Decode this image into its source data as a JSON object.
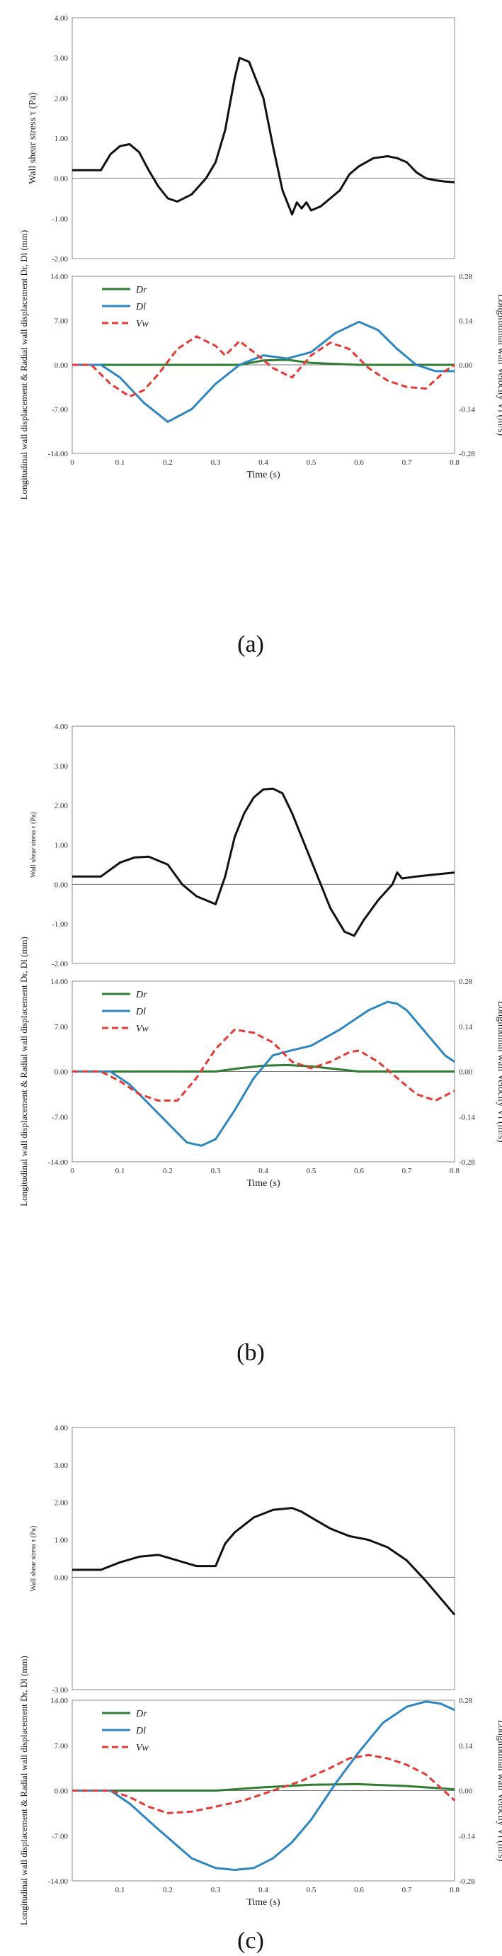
{
  "colors": {
    "Dr": "#2e7d32",
    "Dl": "#2e86c1",
    "Vw": "#e53935",
    "tau": "#111111"
  },
  "chart_data": [
    {
      "panel": "(a)",
      "shear": {
        "type": "line",
        "ylabel": "Wall shear stress τ (Pa)",
        "ylim": [
          -2.0,
          4.0
        ],
        "yticks": [
          "-2.00",
          "-1.00",
          "0.00",
          "1.00",
          "2.00",
          "3.00",
          "4.00"
        ],
        "x": [
          0,
          0.04,
          0.06,
          0.08,
          0.1,
          0.12,
          0.14,
          0.16,
          0.18,
          0.2,
          0.22,
          0.25,
          0.28,
          0.3,
          0.32,
          0.34,
          0.35,
          0.37,
          0.38,
          0.4,
          0.42,
          0.44,
          0.46,
          0.47,
          0.48,
          0.49,
          0.5,
          0.52,
          0.54,
          0.56,
          0.58,
          0.6,
          0.63,
          0.66,
          0.68,
          0.7,
          0.72,
          0.74,
          0.76,
          0.78,
          0.8
        ],
        "values": [
          0.2,
          0.2,
          0.2,
          0.6,
          0.8,
          0.85,
          0.65,
          0.2,
          -0.2,
          -0.5,
          -0.58,
          -0.4,
          0.0,
          0.4,
          1.2,
          2.5,
          3.0,
          2.9,
          2.6,
          2.0,
          0.8,
          -0.3,
          -0.9,
          -0.6,
          -0.75,
          -0.6,
          -0.8,
          -0.7,
          -0.5,
          -0.3,
          0.1,
          0.3,
          0.5,
          0.55,
          0.5,
          0.4,
          0.15,
          0.0,
          -0.05,
          -0.08,
          -0.1
        ]
      },
      "displacement": {
        "type": "line",
        "xlabel": "Time (s)",
        "ylabel_left": "Longitudinal wall displacement & Radial wall displacement Dr, Dl (mm)",
        "ylabel_right": "Longitudinal wall Velocity Vl (m/s)",
        "ylim_left": [
          -14.0,
          14.0
        ],
        "ylim_right": [
          -0.28,
          0.28
        ],
        "yticks_left": [
          "-14.00",
          "-7.00",
          "0.00",
          "7.00",
          "14.00"
        ],
        "yticks_right": [
          "-0.28",
          "-0.14",
          "0.00",
          "0.14",
          "0.28"
        ],
        "xticks": [
          "0",
          "0.1",
          "0.2",
          "0.3",
          "0.4",
          "0.5",
          "0.6",
          "0.7",
          "0.8"
        ],
        "series": [
          {
            "name": "Dr",
            "axis": "left",
            "x": [
              0,
              0.2,
              0.35,
              0.4,
              0.45,
              0.5,
              0.6,
              0.8
            ],
            "values": [
              0,
              0,
              0,
              0.7,
              0.8,
              0.3,
              0,
              0
            ]
          },
          {
            "name": "Dl",
            "axis": "left",
            "x": [
              0,
              0.06,
              0.1,
              0.15,
              0.2,
              0.25,
              0.3,
              0.35,
              0.4,
              0.45,
              0.5,
              0.55,
              0.6,
              0.64,
              0.68,
              0.72,
              0.76,
              0.8
            ],
            "values": [
              0,
              0,
              -2,
              -6,
              -9,
              -7,
              -3,
              0,
              1.5,
              1,
              2,
              5,
              6.8,
              5.5,
              2.5,
              0,
              -1,
              -1
            ]
          },
          {
            "name": "Vw",
            "axis": "right",
            "x": [
              0,
              0.04,
              0.08,
              0.12,
              0.15,
              0.18,
              0.22,
              0.26,
              0.3,
              0.32,
              0.35,
              0.38,
              0.42,
              0.46,
              0.5,
              0.54,
              0.58,
              0.62,
              0.66,
              0.7,
              0.74,
              0.78,
              0.8
            ],
            "values": [
              0,
              0,
              -0.06,
              -0.1,
              -0.08,
              -0.03,
              0.05,
              0.09,
              0.06,
              0.03,
              0.075,
              0.04,
              -0.01,
              -0.04,
              0.03,
              0.07,
              0.05,
              -0.01,
              -0.05,
              -0.07,
              -0.075,
              -0.02,
              0
            ]
          }
        ]
      }
    },
    {
      "panel": "(b)",
      "shear": {
        "type": "line",
        "ylabel": "Wall shear stress τ (Pa)",
        "ylim": [
          -2.0,
          4.0
        ],
        "yticks": [
          "-2.00",
          "-1.00",
          "0.00",
          "1.00",
          "2.00",
          "3.00",
          "4.00"
        ],
        "x": [
          0,
          0.04,
          0.06,
          0.1,
          0.13,
          0.16,
          0.2,
          0.23,
          0.26,
          0.3,
          0.32,
          0.34,
          0.36,
          0.38,
          0.4,
          0.42,
          0.44,
          0.46,
          0.5,
          0.54,
          0.57,
          0.59,
          0.61,
          0.64,
          0.67,
          0.68,
          0.69,
          0.72,
          0.76,
          0.8
        ],
        "values": [
          0.2,
          0.2,
          0.2,
          0.55,
          0.68,
          0.7,
          0.5,
          0.0,
          -0.3,
          -0.5,
          0.2,
          1.2,
          1.8,
          2.2,
          2.4,
          2.42,
          2.3,
          1.8,
          0.6,
          -0.6,
          -1.2,
          -1.3,
          -0.9,
          -0.4,
          0.0,
          0.3,
          0.15,
          0.2,
          0.25,
          0.3
        ]
      },
      "displacement": {
        "type": "line",
        "xlabel": "Time (s)",
        "ylabel_left": "Longitudinal wall displacement & Radial wall displacement Dr, Dl (mm)",
        "ylabel_right": "Longitudinal wall Velocity Vl (m/s)",
        "ylim_left": [
          -14.0,
          14.0
        ],
        "ylim_right": [
          -0.28,
          0.28
        ],
        "yticks_left": [
          "-14.00",
          "-7.00",
          "0.00",
          "7.00",
          "14.00"
        ],
        "yticks_right": [
          "-0.28",
          "-0.14",
          "0.00",
          "0.14",
          "0.28"
        ],
        "xticks": [
          "0",
          "0.1",
          "0.2",
          "0.3",
          "0.4",
          "0.5",
          "0.6",
          "0.7",
          "0.8"
        ],
        "series": [
          {
            "name": "Dr",
            "axis": "left",
            "x": [
              0,
              0.3,
              0.35,
              0.4,
              0.45,
              0.5,
              0.55,
              0.6,
              0.8
            ],
            "values": [
              0,
              0,
              0.5,
              0.9,
              1.0,
              0.8,
              0.4,
              0,
              0
            ]
          },
          {
            "name": "Dl",
            "axis": "left",
            "x": [
              0,
              0.08,
              0.12,
              0.16,
              0.2,
              0.24,
              0.27,
              0.3,
              0.34,
              0.38,
              0.42,
              0.46,
              0.5,
              0.56,
              0.62,
              0.66,
              0.68,
              0.7,
              0.74,
              0.78,
              0.8
            ],
            "values": [
              0,
              0,
              -2,
              -5,
              -8,
              -11,
              -11.5,
              -10.5,
              -6,
              -1,
              2.5,
              3.3,
              4,
              6.5,
              9.5,
              10.8,
              10.5,
              9.5,
              6,
              2.5,
              1.5
            ]
          },
          {
            "name": "Vw",
            "axis": "right",
            "x": [
              0,
              0.06,
              0.1,
              0.14,
              0.18,
              0.22,
              0.26,
              0.3,
              0.34,
              0.38,
              0.42,
              0.46,
              0.5,
              0.54,
              0.58,
              0.6,
              0.64,
              0.68,
              0.72,
              0.76,
              0.8
            ],
            "values": [
              0,
              0,
              -0.03,
              -0.07,
              -0.09,
              -0.09,
              -0.02,
              0.07,
              0.13,
              0.12,
              0.09,
              0.03,
              0.01,
              0.03,
              0.06,
              0.065,
              0.03,
              -0.02,
              -0.07,
              -0.09,
              -0.06
            ]
          }
        ]
      }
    },
    {
      "panel": "(c)",
      "shear": {
        "type": "line",
        "ylabel": "Wall shear stress τ (Pa)",
        "ylim": [
          -3.0,
          4.0
        ],
        "yticks": [
          "-3.00",
          "0.00",
          "1.00",
          "2.00",
          "3.00",
          "4.00"
        ],
        "x": [
          0,
          0.04,
          0.06,
          0.1,
          0.14,
          0.18,
          0.22,
          0.26,
          0.3,
          0.32,
          0.34,
          0.38,
          0.42,
          0.46,
          0.48,
          0.5,
          0.54,
          0.58,
          0.62,
          0.66,
          0.7,
          0.74,
          0.78,
          0.8
        ],
        "values": [
          0.2,
          0.2,
          0.2,
          0.4,
          0.55,
          0.6,
          0.45,
          0.3,
          0.3,
          0.9,
          1.2,
          1.6,
          1.8,
          1.85,
          1.75,
          1.6,
          1.3,
          1.1,
          1.0,
          0.8,
          0.45,
          -0.1,
          -0.7,
          -1.0
        ]
      },
      "displacement": {
        "type": "line",
        "xlabel": "Time (s)",
        "ylabel_left": "Longitudinal wall displacement & Radial wall displacement Dr, Dl (mm)",
        "ylabel_right": "Longitudinal wall Velocity Vl (m/s)",
        "ylim_left": [
          -14.0,
          14.0
        ],
        "ylim_right": [
          -0.28,
          0.28
        ],
        "yticks_left": [
          "-14.00",
          "-7.00",
          "0.00",
          "7.00",
          "14.00"
        ],
        "yticks_right": [
          "-0.28",
          "-0.14",
          "0.00",
          "0.14",
          "0.28"
        ],
        "xticks": [
          "0.1",
          "0.2",
          "0.3",
          "0.4",
          "0.5",
          "0.6",
          "0.7",
          "0.8"
        ],
        "series": [
          {
            "name": "Dr",
            "axis": "left",
            "x": [
              0,
              0.3,
              0.4,
              0.5,
              0.6,
              0.7,
              0.8
            ],
            "values": [
              0,
              0,
              0.5,
              0.9,
              1.0,
              0.7,
              0.2
            ]
          },
          {
            "name": "Dl",
            "axis": "left",
            "x": [
              0,
              0.08,
              0.12,
              0.18,
              0.25,
              0.3,
              0.34,
              0.38,
              0.42,
              0.46,
              0.5,
              0.55,
              0.6,
              0.65,
              0.7,
              0.74,
              0.77,
              0.8
            ],
            "values": [
              0,
              0,
              -2,
              -6,
              -10.5,
              -12,
              -12.3,
              -12,
              -10.5,
              -8,
              -4.5,
              1,
              6,
              10.5,
              13,
              13.8,
              13.5,
              12.5
            ]
          },
          {
            "name": "Vw",
            "axis": "right",
            "x": [
              0,
              0.08,
              0.12,
              0.16,
              0.2,
              0.25,
              0.3,
              0.36,
              0.42,
              0.48,
              0.54,
              0.58,
              0.62,
              0.66,
              0.7,
              0.74,
              0.8
            ],
            "values": [
              0,
              0,
              -0.02,
              -0.05,
              -0.07,
              -0.065,
              -0.05,
              -0.03,
              0.0,
              0.03,
              0.07,
              0.1,
              0.11,
              0.1,
              0.08,
              0.05,
              -0.03
            ]
          }
        ]
      }
    }
  ]
}
